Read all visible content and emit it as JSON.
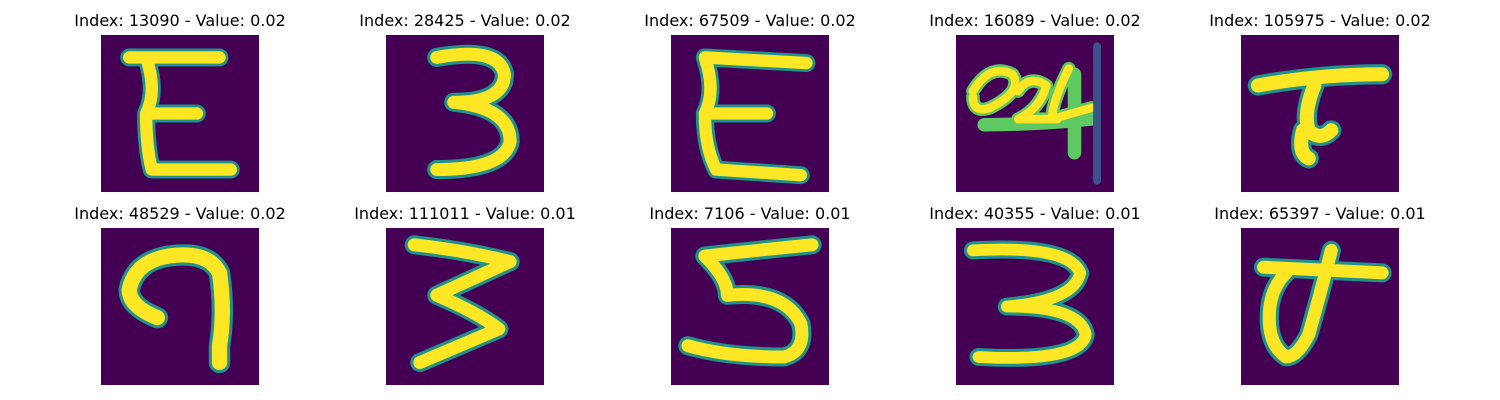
{
  "figure": {
    "background_color": "#ffffff",
    "image_background_color": "#440154",
    "stroke_colors": [
      "#fde725",
      "#c2df23",
      "#5ec962",
      "#21918c",
      "#3b528b"
    ]
  },
  "panels": [
    {
      "title": "Index: 13090 - Value: 0.02",
      "index": 13090,
      "value": 0.02,
      "glyph": "E"
    },
    {
      "title": "Index: 28425 - Value: 0.02",
      "index": 28425,
      "value": 0.02,
      "glyph": "3"
    },
    {
      "title": "Index: 67509 - Value: 0.02",
      "index": 67509,
      "value": 0.02,
      "glyph": "E"
    },
    {
      "title": "Index: 16089 - Value: 0.02",
      "index": 16089,
      "value": 0.02,
      "glyph": "24"
    },
    {
      "title": "Index: 105975 - Value: 0.02",
      "index": 105975,
      "value": 0.02,
      "glyph": "T"
    },
    {
      "title": "Index: 48529 - Value: 0.02",
      "index": 48529,
      "value": 0.02,
      "glyph": "hook"
    },
    {
      "title": "Index: 111011 - Value: 0.01",
      "index": 111011,
      "value": 0.01,
      "glyph": "3"
    },
    {
      "title": "Index: 7106 - Value: 0.01",
      "index": 7106,
      "value": 0.01,
      "glyph": "5"
    },
    {
      "title": "Index: 40355 - Value: 0.01",
      "index": 40355,
      "value": 0.01,
      "glyph": "3"
    },
    {
      "title": "Index: 65397 - Value: 0.01",
      "index": 65397,
      "value": 0.01,
      "glyph": "loop-T"
    }
  ]
}
